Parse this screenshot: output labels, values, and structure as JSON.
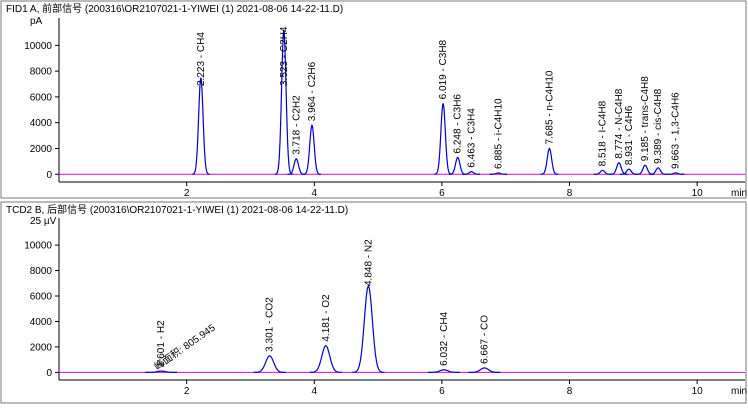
{
  "chart_data": [
    {
      "type": "chromatogram",
      "title": "FID1 A, 前部信号 (200316\\OR2107021-1-YIWEI (1) 2021-08-06 14-22-11.D)",
      "y_unit": "pA",
      "x_unit": "min",
      "color": "#0000cc",
      "baseline_color": "#e000e0",
      "xlim": [
        0,
        10.75
      ],
      "ylim": [
        -600,
        11500
      ],
      "xticks": [
        2,
        4,
        6,
        8,
        10
      ],
      "yticks": [
        0,
        2000,
        4000,
        6000,
        8000,
        10000
      ],
      "peaks": [
        {
          "x": 2.223,
          "height": 7500,
          "label": "2.223 - CH4"
        },
        {
          "x": 3.523,
          "height": 11200,
          "label": "3.523 - C2H4"
        },
        {
          "x": 3.718,
          "height": 1200,
          "label": "3.718 - C2H2"
        },
        {
          "x": 3.964,
          "height": 3800,
          "label": "3.964 - C2H6"
        },
        {
          "x": 6.019,
          "height": 5500,
          "label": "6.019 - C3H8"
        },
        {
          "x": 6.248,
          "height": 1300,
          "label": "6.248 - C3H6"
        },
        {
          "x": 6.463,
          "height": 200,
          "label": "6.463 - C3H4"
        },
        {
          "x": 6.885,
          "height": 100,
          "label": "6.885 - i-C4H10"
        },
        {
          "x": 7.685,
          "height": 2000,
          "label": "7.685 - n-C4H10"
        },
        {
          "x": 8.518,
          "height": 300,
          "label": "8.518 - I-C4H8"
        },
        {
          "x": 8.774,
          "height": 900,
          "label": "8.774 - N-C4H8"
        },
        {
          "x": 8.931,
          "height": 400,
          "label": "8.931 - C4H6"
        },
        {
          "x": 9.185,
          "height": 700,
          "label": "9.185 - trans-C4H8"
        },
        {
          "x": 9.389,
          "height": 500,
          "label": "9.389 - cis-C4H8"
        },
        {
          "x": 9.663,
          "height": 100,
          "label": "9.663 - 1,3-C4H6"
        }
      ]
    },
    {
      "type": "chromatogram",
      "title": "TCD2 B, 后部信号 (200316\\OR2107021-1-YIWEI (1) 2021-08-06 14-22-11.D)",
      "y_unit": "25 µV",
      "x_unit": "min",
      "color": "#0000cc",
      "baseline_color": "#e000e0",
      "xlim": [
        0,
        10.75
      ],
      "ylim": [
        -600,
        11500
      ],
      "xticks": [
        2,
        4,
        6,
        8,
        10
      ],
      "yticks": [
        0,
        2000,
        4000,
        6000,
        8000,
        10000
      ],
      "annotation": "峰面积: 805.945",
      "peaks": [
        {
          "x": 1.601,
          "height": 100,
          "label": "1.601 - H2"
        },
        {
          "x": 3.301,
          "height": 1300,
          "label": "3.301 - CO2"
        },
        {
          "x": 4.181,
          "height": 2100,
          "label": "4.181 - O2"
        },
        {
          "x": 4.848,
          "height": 6800,
          "label": "4.848 - N2"
        },
        {
          "x": 6.032,
          "height": 200,
          "label": "6.032 - CH4"
        },
        {
          "x": 6.667,
          "height": 350,
          "label": "6.667 - CO"
        }
      ]
    }
  ]
}
